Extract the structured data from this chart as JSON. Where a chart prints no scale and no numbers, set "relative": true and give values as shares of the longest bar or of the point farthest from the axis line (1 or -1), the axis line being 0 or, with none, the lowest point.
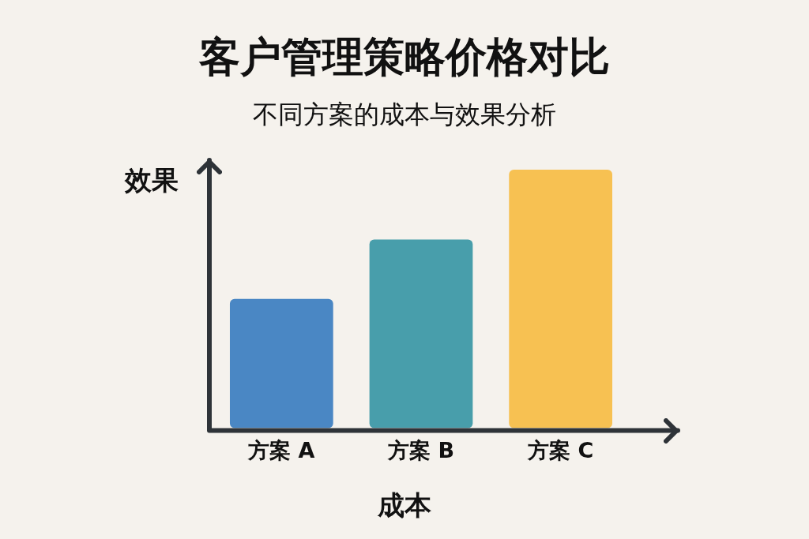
{
  "chart_data": {
    "type": "bar",
    "title": "客户管理策略价格对比",
    "subtitle": "不同方案的成本与效果分析",
    "xlabel": "成本",
    "ylabel": "效果",
    "categories": [
      "方案 A",
      "方案 B",
      "方案 C"
    ],
    "values": [
      0.5,
      0.73,
      1
    ],
    "colors": [
      "#4a87c4",
      "#489eab",
      "#f7c152"
    ],
    "relative": true,
    "grid": false,
    "legend": false
  }
}
